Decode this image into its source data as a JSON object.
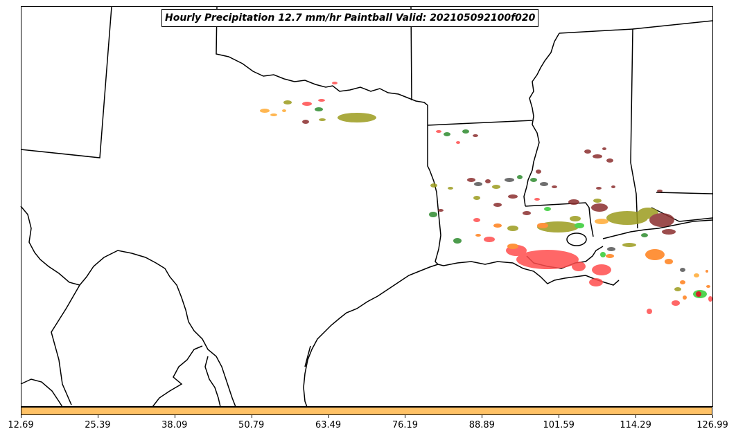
{
  "title": "Hourly Precipitation 12.7 mm/hr Paintball Valid: 202105092100f020",
  "colorbar": {
    "color": "#ffc266",
    "ticks": [
      "12.69",
      "25.39",
      "38.09",
      "50.79",
      "63.49",
      "76.19",
      "88.89",
      "101.59",
      "114.29",
      "126.99"
    ]
  },
  "member_colors": [
    "#ff4d4d",
    "#8b2f2f",
    "#9c9c1e",
    "#2e8b2e",
    "#ff7f1a",
    "#33cc33",
    "#555555",
    "#ffaa33",
    "#cc0000"
  ]
}
